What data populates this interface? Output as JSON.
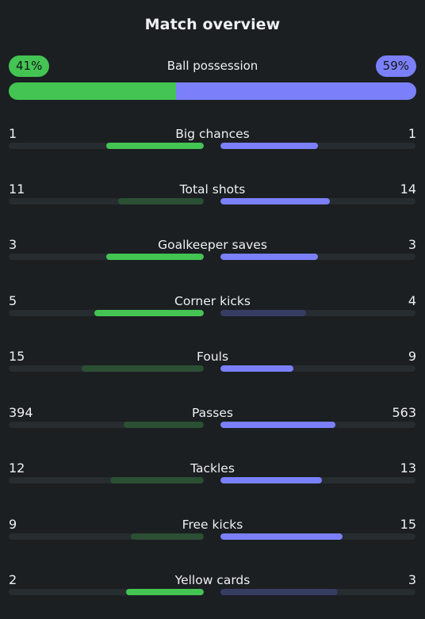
{
  "title": "Match overview",
  "colors": {
    "home_strong": "#44c453",
    "home_weak": "#2b4f33",
    "away_strong": "#7b80fa",
    "away_weak": "#363d63",
    "track": "#262c2f",
    "background": "#1b1f22"
  },
  "possession": {
    "label": "Ball possession",
    "home": "41%",
    "away": "59%",
    "home_fraction": 0.41,
    "away_fraction": 0.59
  },
  "stats": [
    {
      "label": "Big chances",
      "home": "1",
      "away": "1",
      "home_share": 0.5,
      "away_share": 0.5,
      "leader": "both"
    },
    {
      "label": "Total shots",
      "home": "11",
      "away": "14",
      "home_share": 0.44,
      "away_share": 0.56,
      "leader": "away"
    },
    {
      "label": "Goalkeeper saves",
      "home": "3",
      "away": "3",
      "home_share": 0.5,
      "away_share": 0.5,
      "leader": "both"
    },
    {
      "label": "Corner kicks",
      "home": "5",
      "away": "4",
      "home_share": 0.56,
      "away_share": 0.44,
      "leader": "home"
    },
    {
      "label": "Fouls",
      "home": "15",
      "away": "9",
      "home_share": 0.625,
      "away_share": 0.375,
      "leader": "away"
    },
    {
      "label": "Passes",
      "home": "394",
      "away": "563",
      "home_share": 0.41,
      "away_share": 0.59,
      "leader": "away"
    },
    {
      "label": "Tackles",
      "home": "12",
      "away": "13",
      "home_share": 0.48,
      "away_share": 0.52,
      "leader": "away"
    },
    {
      "label": "Free kicks",
      "home": "9",
      "away": "15",
      "home_share": 0.375,
      "away_share": 0.625,
      "leader": "away"
    },
    {
      "label": "Yellow cards",
      "home": "2",
      "away": "3",
      "home_share": 0.4,
      "away_share": 0.6,
      "leader": "home"
    }
  ]
}
